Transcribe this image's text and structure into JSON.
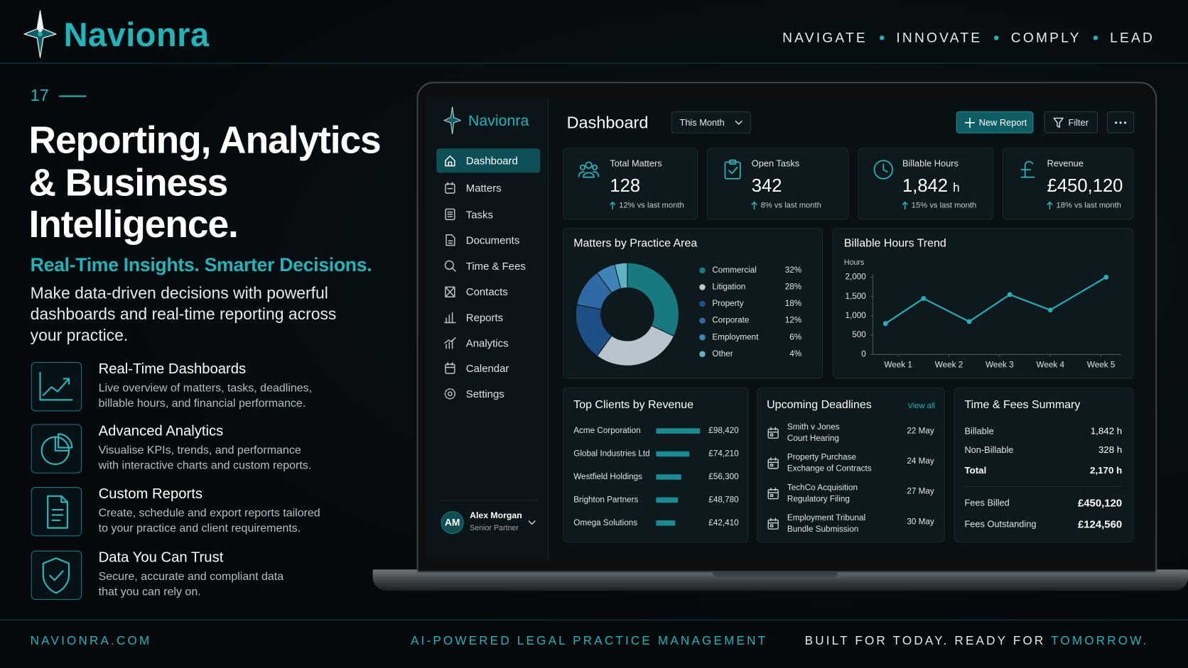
{
  "header": {
    "brand": "Navionra",
    "tagline": [
      "NAVIGATE",
      "INNOVATE",
      "COMPLY",
      "LEAD"
    ]
  },
  "slide": {
    "number": "17",
    "title_lines": [
      "Reporting, Analytics",
      "& Business",
      "Intelligence."
    ],
    "subtitle": "Real-Time Insights. Smarter Decisions.",
    "intro_lines": [
      "Make data-driven decisions with powerful",
      "dashboards and real-time reporting across",
      "your practice."
    ]
  },
  "features": [
    {
      "title": "Real-Time Dashboards",
      "lines": [
        "Live overview of matters, tasks, deadlines,",
        "billable hours, and financial performance."
      ]
    },
    {
      "title": "Advanced Analytics",
      "lines": [
        "Visualise KPIs, trends, and performance",
        "with interactive charts and custom reports."
      ]
    },
    {
      "title": "Custom Reports",
      "lines": [
        "Create, schedule and export reports tailored",
        "to your practice and client requirements."
      ]
    },
    {
      "title": "Data You Can Trust",
      "lines": [
        "Secure, accurate and compliant data",
        "that you can rely on."
      ]
    }
  ],
  "app": {
    "brand": "Navionra",
    "nav": [
      "Dashboard",
      "Matters",
      "Tasks",
      "Documents",
      "Time & Fees",
      "Contacts",
      "Reports",
      "Analytics",
      "Calendar",
      "Settings"
    ],
    "user": {
      "initials": "AM",
      "name": "Alex Morgan",
      "role": "Senior Partner"
    },
    "page_title": "Dashboard",
    "period": "This Month",
    "actions": [
      "New Report",
      "Filter"
    ],
    "kpis": [
      {
        "label": "Total Matters",
        "value": "128",
        "change": "12% vs last month"
      },
      {
        "label": "Open Tasks",
        "value": "342",
        "change": "8% vs last month"
      },
      {
        "label": "Billable Hours",
        "value": "1,842",
        "unit": "h",
        "change": "15% vs last month"
      },
      {
        "label": "Revenue",
        "value": "£450,120",
        "change": "18% vs last month"
      }
    ],
    "practice_chart": {
      "type": "pie",
      "title": "Matters by Practice Area",
      "categories": [
        "Commercial",
        "Litigation",
        "Property",
        "Corporate",
        "Employment",
        "Other"
      ],
      "values": [
        32,
        28,
        18,
        12,
        6,
        4
      ],
      "value_labels": [
        "32%",
        "28%",
        "18%",
        "12%",
        "6%",
        "4%"
      ],
      "colors": [
        "#167a80",
        "#b9c5cc",
        "#1c4f86",
        "#2e6aa6",
        "#3f84b8",
        "#5fb3c2"
      ]
    },
    "hours_chart": {
      "type": "line",
      "title": "Billable Hours Trend",
      "y_label": "Hours",
      "x": [
        0.75,
        1.5,
        2.4,
        3.2,
        4,
        5.1
      ],
      "values": [
        800,
        1450,
        850,
        1550,
        1150,
        2000
      ],
      "xlim": [
        0.5,
        5.4
      ],
      "xticks": [
        {
          "value": 1,
          "label": "Week 1"
        },
        {
          "value": 2,
          "label": "Week 2"
        },
        {
          "value": 3,
          "label": "Week 3"
        },
        {
          "value": 4,
          "label": "Week 4"
        },
        {
          "value": 5,
          "label": "Week 5"
        }
      ],
      "ylim": [
        0,
        2000
      ],
      "yticks": [
        0,
        500,
        {
          "value": 1000,
          "label": "1,000"
        },
        {
          "value": 1500,
          "label": "1,500"
        },
        {
          "value": 2000,
          "label": "2,000"
        }
      ],
      "color": "#22b3b8"
    },
    "clients_chart": {
      "type": "bar",
      "title": "Top Clients by Revenue",
      "categories": [
        "Acme Corporation",
        "Global Industries Ltd",
        "Westfield Holdings",
        "Brighton Partners",
        "Omega Solutions"
      ],
      "values": [
        98420,
        74210,
        56300,
        48780,
        42410
      ],
      "value_labels": [
        "£98,420",
        "£74,210",
        "£56,300",
        "£48,780",
        "£42,410"
      ],
      "color": "#188e94"
    },
    "deadlines": {
      "title": "Upcoming Deadlines",
      "link": "View all",
      "items": [
        {
          "lines": [
            "Smith v Jones",
            "Court Hearing"
          ],
          "date": "22 May"
        },
        {
          "lines": [
            "Property Purchase",
            "Exchange of Contracts"
          ],
          "date": "24 May"
        },
        {
          "lines": [
            "TechCo Acquisition",
            "Regulatory Filing"
          ],
          "date": "27 May"
        },
        {
          "lines": [
            "Employment Tribunal",
            "Bundle Submission"
          ],
          "date": "30 May"
        }
      ]
    },
    "fees": {
      "title": "Time & Fees Summary",
      "rows": [
        {
          "label": "Billable",
          "value": "1,842 h"
        },
        {
          "label": "Non-Billable",
          "value": "328 h"
        },
        {
          "label": "Total",
          "value": "2,170 h"
        },
        {
          "label": "Fees Billed",
          "value": "£450,120"
        },
        {
          "label": "Fees Outstanding",
          "value": "£124,560"
        }
      ]
    }
  },
  "footer": {
    "site": "NAVIONRA.COM",
    "center": "AI-POWERED LEGAL PRACTICE MANAGEMENT",
    "right": "BUILT FOR TODAY. READY FOR",
    "highlight": "TOMORROW."
  }
}
